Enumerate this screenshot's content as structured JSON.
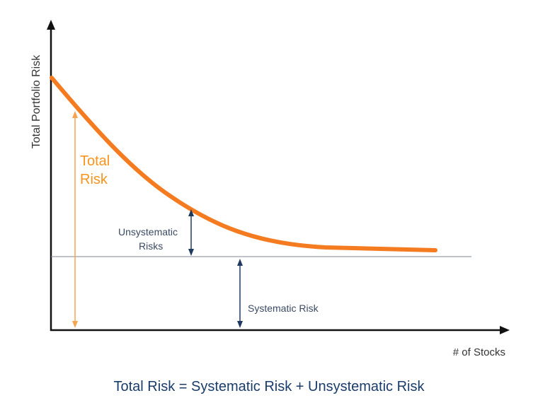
{
  "diagram": {
    "y_axis_label": "Total Portfolio Risk",
    "x_axis_label": "# of Stocks",
    "total_risk_label_line1": "Total",
    "total_risk_label_line2": "Risk",
    "unsystematic_label_line1": "Unsystematic",
    "unsystematic_label_line2": "Risks",
    "systematic_label": "Systematic Risk",
    "formula": "Total Risk = Systematic Risk + Unsystematic Risk"
  },
  "colors": {
    "curve": "#f47b20",
    "total_arrow": "#f7a350",
    "total_text": "#f7941d",
    "axis": "#111111",
    "baseline": "#7f8a96",
    "navy_arrow": "#1f3a5f",
    "navy_text": "#3b4a63",
    "axis_text": "#333333",
    "formula_text": "#1a3c6b"
  },
  "icons": {
    "x_axis_arrowhead": "arrow-right-icon",
    "y_axis_arrowhead": "arrow-up-icon"
  }
}
